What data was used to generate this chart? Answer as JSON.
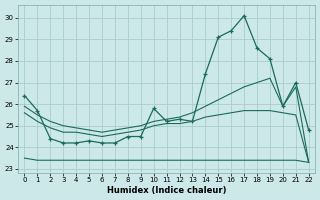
{
  "background_color": "#cce8e8",
  "grid_color": "#aacccc",
  "line_color": "#1a6b5a",
  "xlabel": "Humidex (Indice chaleur)",
  "xlim": [
    -0.5,
    22.5
  ],
  "ylim": [
    22.8,
    30.6
  ],
  "yticks": [
    23,
    24,
    25,
    26,
    27,
    28,
    29,
    30
  ],
  "xticks": [
    0,
    1,
    2,
    3,
    4,
    5,
    6,
    7,
    8,
    9,
    10,
    11,
    12,
    13,
    14,
    15,
    16,
    17,
    18,
    19,
    20,
    21,
    22
  ],
  "series1_x": [
    0,
    1,
    2,
    3,
    4,
    5,
    6,
    7,
    8,
    9,
    10,
    11,
    12,
    13,
    14,
    15,
    16,
    17,
    18,
    19,
    20,
    21,
    22
  ],
  "series1_y": [
    26.4,
    25.7,
    24.4,
    24.2,
    24.2,
    24.3,
    24.2,
    24.2,
    24.5,
    24.5,
    25.8,
    25.2,
    25.3,
    25.2,
    27.4,
    29.1,
    29.4,
    30.1,
    28.6,
    28.1,
    25.9,
    27.0,
    24.8
  ],
  "series2_x": [
    0,
    1,
    2,
    3,
    4,
    5,
    6,
    7,
    8,
    9,
    10,
    11,
    12,
    13,
    14,
    15,
    16,
    17,
    18,
    19,
    20,
    21,
    22
  ],
  "series2_y": [
    25.9,
    25.5,
    25.2,
    25.0,
    24.9,
    24.8,
    24.7,
    24.8,
    24.9,
    25.0,
    25.2,
    25.3,
    25.4,
    25.6,
    25.9,
    26.2,
    26.5,
    26.8,
    27.0,
    27.2,
    25.9,
    26.8,
    23.3
  ],
  "series3_x": [
    0,
    1,
    2,
    3,
    4,
    5,
    6,
    7,
    8,
    9,
    10,
    11,
    12,
    13,
    14,
    15,
    16,
    17,
    18,
    19,
    20,
    21,
    22
  ],
  "series3_y": [
    25.6,
    25.2,
    24.9,
    24.7,
    24.7,
    24.6,
    24.5,
    24.6,
    24.7,
    24.8,
    25.0,
    25.1,
    25.1,
    25.2,
    25.4,
    25.5,
    25.6,
    25.7,
    25.7,
    25.7,
    25.6,
    25.5,
    23.3
  ],
  "series4_x": [
    0,
    1,
    2,
    3,
    4,
    5,
    6,
    7,
    8,
    9,
    10,
    11,
    12,
    13,
    14,
    15,
    16,
    17,
    18,
    19,
    20,
    21,
    22
  ],
  "series4_y": [
    23.5,
    23.4,
    23.4,
    23.4,
    23.4,
    23.4,
    23.4,
    23.4,
    23.4,
    23.4,
    23.4,
    23.4,
    23.4,
    23.4,
    23.4,
    23.4,
    23.4,
    23.4,
    23.4,
    23.4,
    23.4,
    23.4,
    23.3
  ]
}
